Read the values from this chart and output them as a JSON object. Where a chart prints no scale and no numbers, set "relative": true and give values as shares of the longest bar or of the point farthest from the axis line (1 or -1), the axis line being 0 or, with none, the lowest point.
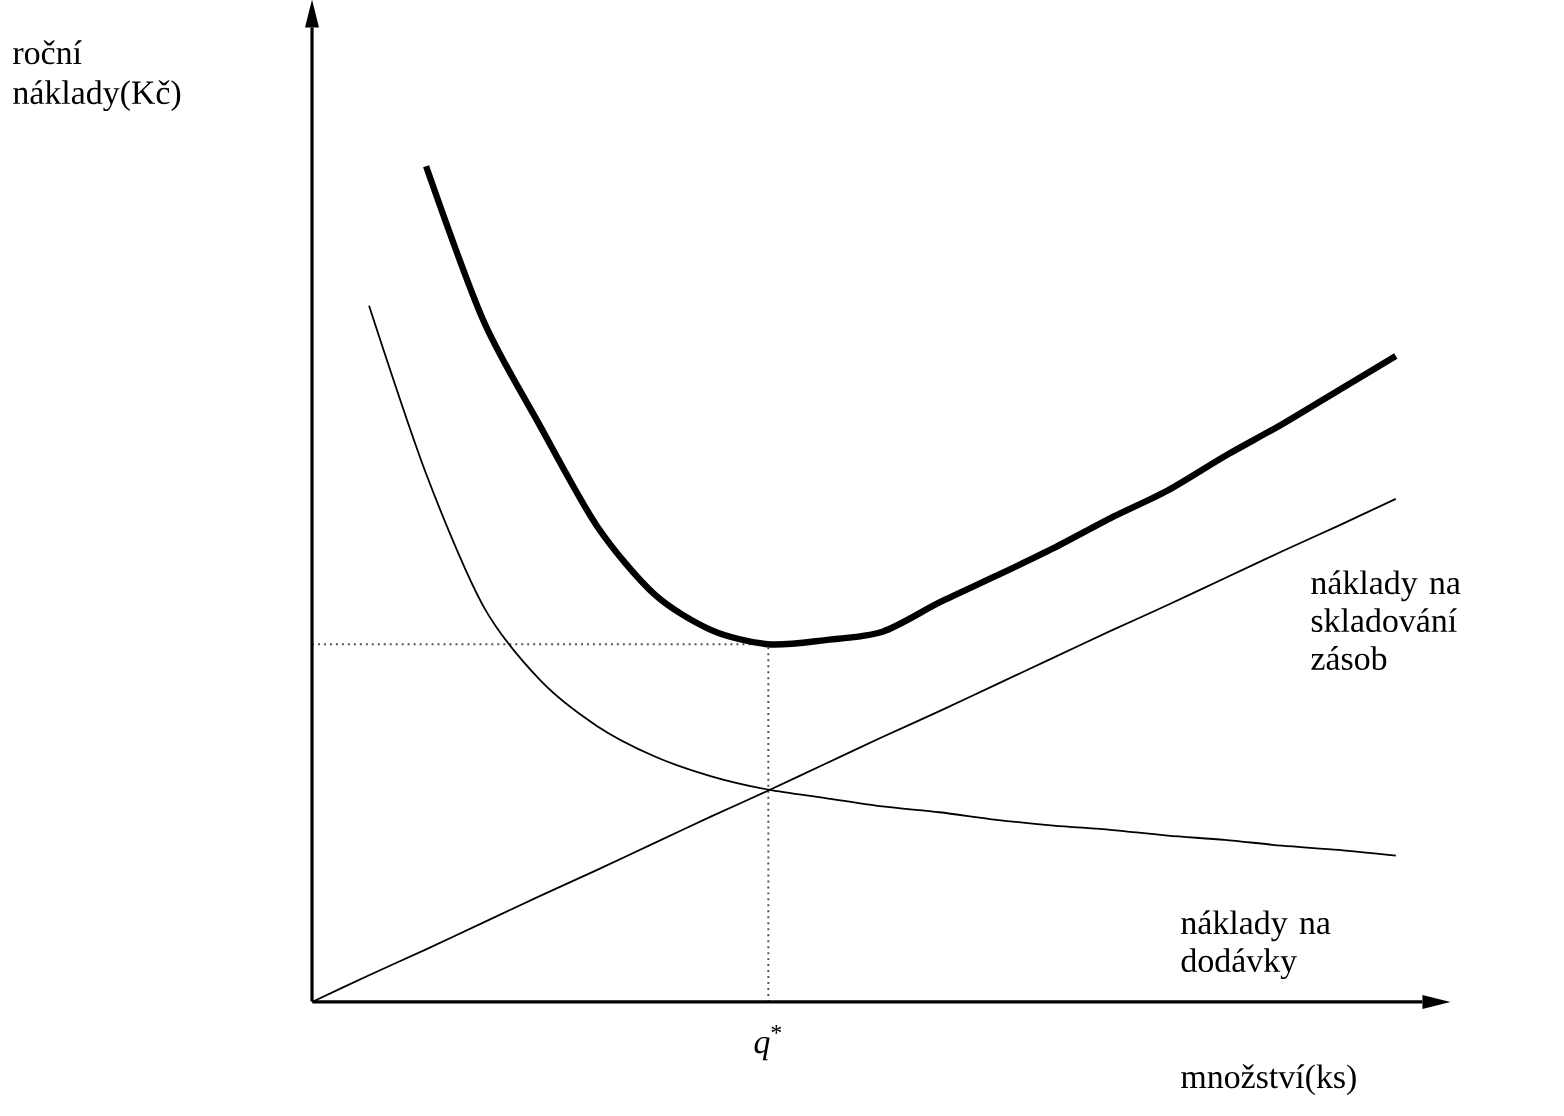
{
  "chart_data": {
    "type": "line",
    "relative": true,
    "ylabel": "roční náklady(Kč)",
    "xlabel": "množství(ks)",
    "categories": [
      null,
      null,
      null,
      null,
      null,
      null,
      null,
      null,
      null,
      null,
      null,
      null,
      null,
      null,
      null,
      null,
      null,
      null,
      null,
      null
    ],
    "series": [
      {
        "color": "#000000",
        "values": [
          null,
          null,
          1.0,
          0.816,
          0.689,
          0.569,
          0.488,
          0.445,
          0.428,
          0.433,
          0.443,
          0.478,
          0.51,
          0.543,
          0.579,
          0.612,
          0.653,
          0.691,
          0.732,
          0.773
        ]
      },
      {
        "name": "náklady na skladování zásob",
        "color": "#000000",
        "values": [
          0,
          0.032,
          0.063,
          0.095,
          0.127,
          0.158,
          0.19,
          0.222,
          0.253,
          0.285,
          0.317,
          0.348,
          0.38,
          0.412,
          0.444,
          0.475,
          0.507,
          0.539,
          0.57,
          0.602
        ]
      },
      {
        "name": "náklady na dodávky",
        "color": "#000000",
        "values": [
          null,
          0.833,
          0.632,
          0.474,
          0.385,
          0.33,
          0.294,
          0.27,
          0.254,
          0.244,
          0.234,
          0.227,
          0.218,
          0.211,
          0.206,
          0.199,
          0.194,
          0.187,
          0.182,
          0.175
        ]
      }
    ],
    "annotations": [
      "*q*$^{*}$"
    ],
    "ref_lines": [
      {
        "axis": "y",
        "value": 0.428,
        "color": "#555555",
        "line_style": "dotted"
      }
    ],
    "marker": "none",
    "line_style": "solid"
  }
}
